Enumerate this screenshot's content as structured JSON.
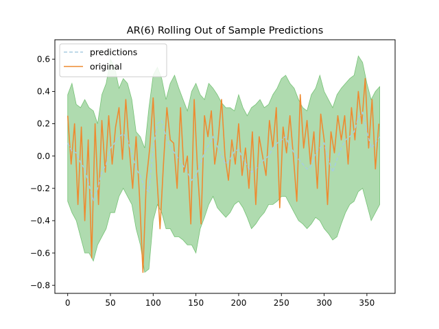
{
  "chart_data": {
    "type": "line",
    "title": "AR(6) Rolling Out of Sample Predictions",
    "xlabel": "",
    "ylabel": "",
    "xlim": [
      -15,
      383
    ],
    "ylim": [
      -0.85,
      0.72
    ],
    "xticks": [
      0,
      50,
      100,
      150,
      200,
      250,
      300,
      350
    ],
    "yticks": [
      -0.8,
      -0.6,
      -0.4,
      -0.2,
      0.0,
      0.2,
      0.4,
      0.6
    ],
    "ytick_labels": [
      "−0.8",
      "−0.6",
      "−0.4",
      "−0.2",
      "0.0",
      "0.2",
      "0.4",
      "0.6"
    ],
    "grid": false,
    "legend_position": "top-left",
    "x_range": [
      0,
      365
    ],
    "series": [
      {
        "name": "predictions",
        "style": "dashed",
        "color": "#a8cce0",
        "x": [
          0,
          5,
          10,
          15,
          20,
          25,
          30,
          35,
          40,
          45,
          50,
          55,
          60,
          65,
          70,
          75,
          80,
          85,
          90,
          95,
          100,
          105,
          110,
          115,
          120,
          125,
          130,
          135,
          140,
          145,
          150,
          155,
          160,
          165,
          170,
          175,
          180,
          185,
          190,
          195,
          200,
          205,
          210,
          215,
          220,
          225,
          230,
          235,
          240,
          245,
          250,
          255,
          260,
          265,
          270,
          275,
          280,
          285,
          290,
          295,
          300,
          305,
          310,
          315,
          320,
          325,
          330,
          335,
          340,
          345,
          350,
          355,
          360,
          365
        ],
        "values": [
          0.08,
          0.03,
          0.02,
          -0.04,
          -0.08,
          -0.18,
          -0.28,
          -0.2,
          -0.1,
          -0.05,
          0.05,
          0.08,
          0.12,
          0.14,
          0.1,
          0.02,
          -0.08,
          -0.12,
          -0.2,
          -0.22,
          0.05,
          0.2,
          0.22,
          0.12,
          0.05,
          0.02,
          -0.02,
          -0.06,
          -0.1,
          -0.15,
          -0.12,
          -0.05,
          0.02,
          0.07,
          0.12,
          0.06,
          0.0,
          -0.05,
          -0.02,
          0.03,
          0.04,
          -0.02,
          -0.06,
          -0.1,
          -0.08,
          -0.05,
          -0.02,
          0.0,
          0.05,
          0.08,
          0.1,
          0.12,
          0.06,
          0.02,
          -0.02,
          -0.05,
          -0.08,
          -0.06,
          0.02,
          0.05,
          0.08,
          -0.02,
          -0.1,
          -0.02,
          0.05,
          0.1,
          0.12,
          0.15,
          0.24,
          0.27,
          0.15,
          0.05,
          0.08,
          0.12
        ]
      },
      {
        "name": "original",
        "style": "solid",
        "color": "#ee8a30",
        "x": [
          0,
          4,
          8,
          12,
          16,
          20,
          24,
          28,
          32,
          36,
          40,
          44,
          48,
          52,
          56,
          60,
          64,
          68,
          72,
          76,
          80,
          84,
          88,
          92,
          96,
          100,
          104,
          108,
          112,
          116,
          120,
          124,
          128,
          132,
          136,
          140,
          144,
          148,
          152,
          156,
          160,
          164,
          168,
          172,
          176,
          180,
          184,
          188,
          192,
          196,
          200,
          204,
          208,
          212,
          216,
          220,
          224,
          228,
          232,
          236,
          240,
          244,
          248,
          252,
          256,
          260,
          264,
          268,
          272,
          276,
          280,
          284,
          288,
          292,
          296,
          300,
          304,
          308,
          312,
          316,
          320,
          324,
          328,
          332,
          336,
          340,
          344,
          348,
          352,
          356,
          360,
          364
        ],
        "values": [
          0.25,
          -0.05,
          0.2,
          -0.3,
          0.18,
          -0.4,
          0.1,
          -0.63,
          0.2,
          -0.3,
          0.22,
          -0.1,
          0.25,
          -0.05,
          0.18,
          0.3,
          -0.02,
          0.35,
          0.05,
          -0.2,
          0.12,
          -0.25,
          -0.72,
          -0.15,
          0.05,
          0.36,
          -0.1,
          -0.45,
          -0.05,
          0.3,
          0.1,
          0.08,
          -0.2,
          0.3,
          -0.1,
          0.0,
          -0.42,
          0.35,
          -0.1,
          -0.42,
          0.25,
          0.12,
          0.28,
          -0.05,
          0.1,
          0.35,
          0.0,
          -0.15,
          0.1,
          -0.05,
          0.2,
          -0.12,
          0.05,
          -0.2,
          0.15,
          -0.3,
          0.12,
          0.0,
          -0.12,
          0.22,
          0.05,
          0.3,
          -0.32,
          0.18,
          0.02,
          0.25,
          0.0,
          -0.28,
          0.38,
          0.05,
          0.22,
          -0.05,
          0.15,
          -0.2,
          0.26,
          0.1,
          -0.3,
          0.15,
          0.02,
          0.25,
          0.1,
          0.25,
          -0.05,
          0.3,
          0.1,
          0.4,
          0.2,
          0.48,
          0.05,
          0.35,
          -0.08,
          0.2
        ]
      },
      {
        "name": "",
        "type": "band",
        "color": "#2ca02c",
        "x": [
          0,
          5,
          10,
          15,
          20,
          25,
          30,
          35,
          40,
          45,
          50,
          55,
          60,
          65,
          70,
          75,
          80,
          85,
          90,
          95,
          100,
          105,
          110,
          115,
          120,
          125,
          130,
          135,
          140,
          145,
          150,
          155,
          160,
          165,
          170,
          175,
          180,
          185,
          190,
          195,
          200,
          205,
          210,
          215,
          220,
          225,
          230,
          235,
          240,
          245,
          250,
          255,
          260,
          265,
          270,
          275,
          280,
          285,
          290,
          295,
          300,
          305,
          310,
          315,
          320,
          325,
          330,
          335,
          340,
          345,
          350,
          355,
          360,
          365
        ],
        "upper": [
          0.38,
          0.45,
          0.32,
          0.3,
          0.35,
          0.3,
          0.28,
          0.2,
          0.38,
          0.45,
          0.6,
          0.55,
          0.42,
          0.48,
          0.45,
          0.35,
          0.15,
          0.12,
          0.05,
          0.3,
          0.5,
          0.55,
          0.48,
          0.35,
          0.45,
          0.5,
          0.42,
          0.35,
          0.28,
          0.4,
          0.45,
          0.38,
          0.35,
          0.45,
          0.42,
          0.38,
          0.33,
          0.3,
          0.3,
          0.28,
          0.38,
          0.3,
          0.25,
          0.3,
          0.32,
          0.35,
          0.3,
          0.32,
          0.38,
          0.42,
          0.48,
          0.5,
          0.45,
          0.42,
          0.35,
          0.3,
          0.28,
          0.38,
          0.42,
          0.5,
          0.4,
          0.35,
          0.3,
          0.38,
          0.42,
          0.45,
          0.48,
          0.5,
          0.62,
          0.58,
          0.45,
          0.35,
          0.4,
          0.43
        ],
        "lower": [
          -0.28,
          -0.35,
          -0.4,
          -0.5,
          -0.6,
          -0.6,
          -0.65,
          -0.55,
          -0.5,
          -0.45,
          -0.35,
          -0.35,
          -0.25,
          -0.2,
          -0.25,
          -0.3,
          -0.45,
          -0.55,
          -0.72,
          -0.7,
          -0.4,
          -0.3,
          -0.35,
          -0.45,
          -0.45,
          -0.5,
          -0.5,
          -0.52,
          -0.55,
          -0.55,
          -0.6,
          -0.45,
          -0.38,
          -0.3,
          -0.25,
          -0.32,
          -0.35,
          -0.38,
          -0.35,
          -0.3,
          -0.28,
          -0.32,
          -0.38,
          -0.45,
          -0.42,
          -0.38,
          -0.35,
          -0.3,
          -0.3,
          -0.28,
          -0.25,
          -0.25,
          -0.3,
          -0.35,
          -0.4,
          -0.42,
          -0.45,
          -0.42,
          -0.38,
          -0.4,
          -0.45,
          -0.48,
          -0.52,
          -0.5,
          -0.42,
          -0.35,
          -0.3,
          -0.28,
          -0.22,
          -0.2,
          -0.3,
          -0.4,
          -0.35,
          -0.3
        ]
      }
    ]
  }
}
